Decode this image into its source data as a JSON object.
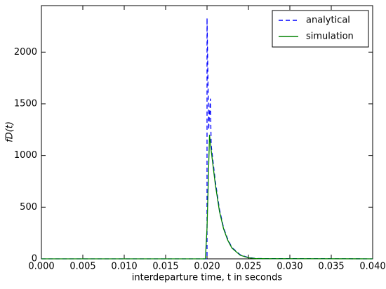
{
  "chart_data": {
    "type": "line",
    "xlabel": "interdeparture time, t in seconds",
    "ylabel": "fD(t)",
    "xlim": [
      0,
      0.04
    ],
    "ylim": [
      0,
      2450
    ],
    "xticks": [
      {
        "value": 0,
        "label": "0.000"
      },
      {
        "value": 0.005,
        "label": "0.005"
      },
      {
        "value": 0.01,
        "label": "0.010"
      },
      {
        "value": 0.015,
        "label": "0.015"
      },
      {
        "value": 0.02,
        "label": "0.020"
      },
      {
        "value": 0.025,
        "label": "0.025"
      },
      {
        "value": 0.03,
        "label": "0.030"
      },
      {
        "value": 0.035,
        "label": "0.035"
      },
      {
        "value": 0.04,
        "label": "0.040"
      }
    ],
    "yticks": [
      0,
      500,
      1000,
      1500,
      2000
    ],
    "legend": "upper right",
    "series": [
      {
        "name": "analytical",
        "color": "#0000ff",
        "dash": true,
        "x": [
          0,
          0.02,
          0.02,
          0.0202,
          0.0204,
          0.0205,
          0.021,
          0.0215,
          0.022,
          0.0225,
          0.023,
          0.024,
          0.025,
          0.026,
          0.04
        ],
        "values": [
          0,
          0,
          2330,
          1250,
          1550,
          1100,
          750,
          480,
          300,
          190,
          110,
          40,
          12,
          3,
          0
        ]
      },
      {
        "name": "simulation",
        "color": "#008000",
        "dash": false,
        "x": [
          0,
          0.0198,
          0.02,
          0.0202,
          0.0203,
          0.0205,
          0.021,
          0.0215,
          0.022,
          0.0225,
          0.023,
          0.024,
          0.025,
          0.026,
          0.04
        ],
        "values": [
          0,
          0,
          300,
          900,
          1200,
          1050,
          720,
          460,
          290,
          180,
          105,
          35,
          10,
          2,
          0
        ]
      }
    ]
  }
}
